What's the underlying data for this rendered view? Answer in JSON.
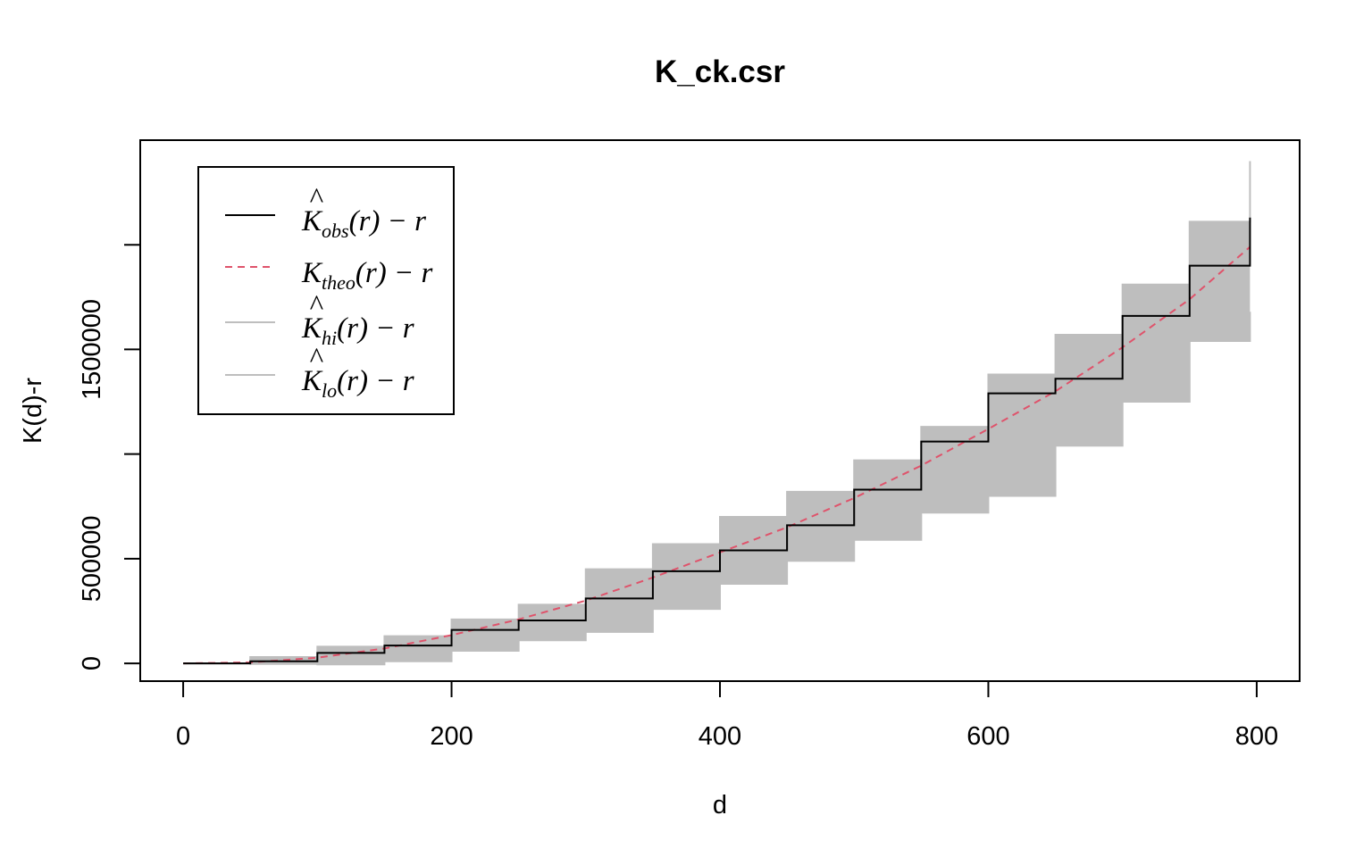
{
  "chart_data": {
    "type": "line",
    "title": "K_ck.csr",
    "xlabel": "d",
    "ylabel": "K(d)-r",
    "xlim": [
      0,
      800
    ],
    "ylim": [
      -85000,
      2500000
    ],
    "x_ticks": [
      0,
      200,
      400,
      600,
      800
    ],
    "x_tick_labels": [
      "0",
      "200",
      "400",
      "600",
      "800"
    ],
    "y_ticks": [
      0,
      500000,
      1000000,
      1500000,
      2000000
    ],
    "y_tick_labels": [
      "0",
      "500000",
      "",
      "1500000",
      ""
    ],
    "grid": false,
    "legend_position": "top-left",
    "legend": [
      {
        "base": "K",
        "hat": true,
        "sub": "obs",
        "suffix": "(r) − r",
        "color": "#000000",
        "dash": "solid"
      },
      {
        "base": "K",
        "hat": false,
        "sub": "theo",
        "suffix": "(r) − r",
        "color": "#DF536B",
        "dash": "dashed"
      },
      {
        "base": "K",
        "hat": true,
        "sub": "hi",
        "suffix": "(r) − r",
        "color": "#BEBEBE",
        "dash": "solid"
      },
      {
        "base": "K",
        "hat": true,
        "sub": "lo",
        "suffix": "(r) − r",
        "color": "#BEBEBE",
        "dash": "solid"
      }
    ],
    "colors": {
      "obs": "#000000",
      "theo": "#DF536B",
      "envelope": "#BEBEBE"
    },
    "series": [
      {
        "name": "K̂obs(r) − r",
        "x": [
          0,
          50,
          100,
          150,
          200,
          250,
          300,
          350,
          400,
          450,
          500,
          550,
          600,
          650,
          700,
          750,
          795
        ],
        "values": [
          0,
          10000,
          50000,
          85000,
          160000,
          205000,
          310000,
          440000,
          540000,
          660000,
          830000,
          1060000,
          1290000,
          1360000,
          1660000,
          1900000,
          2130000
        ]
      },
      {
        "name": "Ktheo(r) − r",
        "x": [
          0,
          50,
          100,
          150,
          200,
          250,
          300,
          350,
          400,
          450,
          500,
          550,
          600,
          650,
          700,
          750,
          795
        ],
        "values": [
          0,
          4500,
          27000,
          71000,
          135000,
          210000,
          300000,
          410000,
          530000,
          650000,
          790000,
          945000,
          1120000,
          1300000,
          1510000,
          1740000,
          1990000
        ]
      },
      {
        "name": "K̂hi(r) − r",
        "x": [
          0,
          50,
          100,
          150,
          200,
          250,
          300,
          350,
          400,
          450,
          500,
          550,
          600,
          650,
          700,
          750,
          795
        ],
        "values": [
          0,
          30000,
          80000,
          130000,
          210000,
          280000,
          450000,
          570000,
          700000,
          820000,
          970000,
          1130000,
          1380000,
          1570000,
          1810000,
          2110000,
          2400000
        ]
      },
      {
        "name": "K̂lo(r) − r",
        "x": [
          0,
          50,
          100,
          150,
          200,
          250,
          300,
          350,
          400,
          450,
          500,
          550,
          600,
          650,
          700,
          750,
          795
        ],
        "values": [
          0,
          -3000,
          -5000,
          10000,
          60000,
          110000,
          150000,
          260000,
          380000,
          490000,
          590000,
          720000,
          800000,
          1040000,
          1250000,
          1540000,
          1680000
        ]
      }
    ]
  }
}
